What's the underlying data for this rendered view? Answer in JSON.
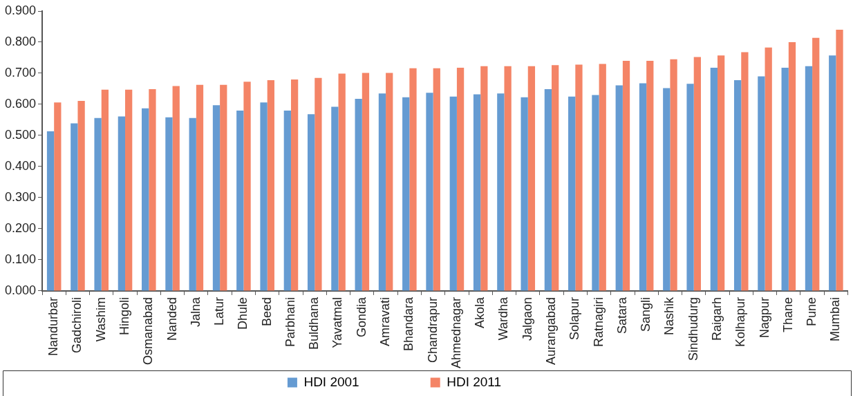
{
  "chart_data": {
    "type": "bar",
    "categories": [
      "Nandurbar",
      "Gadchiroli",
      "Washim",
      "Hingoli",
      "Osmanabad",
      "Nanded",
      "Jalna",
      "Latur",
      "Dhule",
      "Beed",
      "Parbhani",
      "Buldhana",
      "Yavatmal",
      "Gondia",
      "Amravati",
      "Bhandara",
      "Chandrapur",
      "Ahmednagar",
      "Akola",
      "Wardha",
      "Jalgaon",
      "Aurangabad",
      "Solapur",
      "Ratnagiri",
      "Satara",
      "Sangli",
      "Nashik",
      "Sindhudurg",
      "Raigarh",
      "Kolhapur",
      "Nagpur",
      "Thane",
      "Pune",
      "Mumbai"
    ],
    "series": [
      {
        "name": "HDI 2001",
        "color": "#659bd2",
        "values": [
          0.513,
          0.539,
          0.556,
          0.561,
          0.587,
          0.558,
          0.556,
          0.597,
          0.58,
          0.606,
          0.58,
          0.568,
          0.592,
          0.618,
          0.635,
          0.623,
          0.637,
          0.625,
          0.632,
          0.635,
          0.623,
          0.649,
          0.625,
          0.63,
          0.661,
          0.668,
          0.652,
          0.666,
          0.718,
          0.678,
          0.69,
          0.718,
          0.723,
          0.757
        ]
      },
      {
        "name": "HDI 2011",
        "color": "#f48466",
        "values": [
          0.606,
          0.611,
          0.647,
          0.647,
          0.649,
          0.659,
          0.663,
          0.663,
          0.673,
          0.678,
          0.68,
          0.685,
          0.699,
          0.701,
          0.701,
          0.716,
          0.716,
          0.718,
          0.723,
          0.723,
          0.723,
          0.726,
          0.728,
          0.73,
          0.74,
          0.74,
          0.745,
          0.752,
          0.757,
          0.768,
          0.783,
          0.8,
          0.814,
          0.84
        ]
      }
    ],
    "ylim": [
      0,
      0.9
    ],
    "yticks": [
      {
        "value": 0,
        "label": "0.000"
      },
      {
        "value": 0.1,
        "label": "0.100"
      },
      {
        "value": 0.2,
        "label": "0.200"
      },
      {
        "value": 0.3,
        "label": "0.300"
      },
      {
        "value": 0.4,
        "label": "0.400"
      },
      {
        "value": 0.5,
        "label": "0.500"
      },
      {
        "value": 0.6,
        "label": "0.600"
      },
      {
        "value": 0.7,
        "label": "0.700"
      },
      {
        "value": 0.8,
        "label": "0.800"
      },
      {
        "value": 0.9,
        "label": "0.900"
      }
    ],
    "grid": false,
    "legend": "bottom"
  }
}
